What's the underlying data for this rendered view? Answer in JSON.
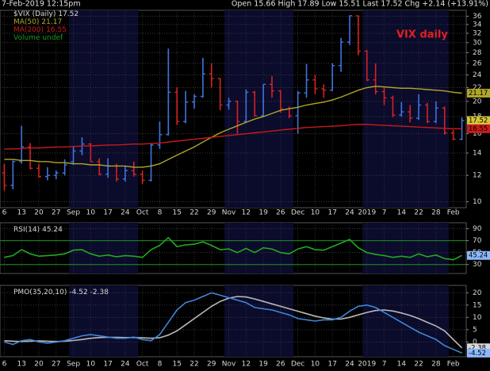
{
  "header": {
    "date": "7-Feb-2019 12:15pm",
    "quote": "Open 15.66  High 17.89  Low 15.51  Last 17.52  Chg +2.14 (+13.91%)"
  },
  "chart_data": [
    {
      "type": "ohlc",
      "annotation": "VIX daily",
      "categories": [
        "6",
        null,
        "13",
        null,
        "20",
        null,
        "27",
        null,
        "Sep",
        null,
        "10",
        null,
        "17",
        null,
        "24",
        null,
        "Oct",
        null,
        "8",
        null,
        "15",
        null,
        "22",
        null,
        "29",
        null,
        "Nov",
        null,
        "12",
        null,
        "19",
        null,
        "26",
        null,
        "Dec",
        null,
        "10",
        null,
        "17",
        null,
        "24",
        null,
        "2019",
        null,
        "7",
        null,
        "14",
        null,
        "22",
        null,
        "28",
        null,
        "Feb",
        null
      ],
      "ohlc": {
        "name": "$VIX (Daily)",
        "up_color": "#3f74e0",
        "down_color": "#d42323",
        "open": [
          12.2,
          11.2,
          13.2,
          14.6,
          12.6,
          11.9,
          12.0,
          12.2,
          13.2,
          14.2,
          14.9,
          13.2,
          12.1,
          12.8,
          11.7,
          12.4,
          12.1,
          11.6,
          14.8,
          15.9,
          21.3,
          17.4,
          19.9,
          20.7,
          24.2,
          23.4,
          19.5,
          20.0,
          17.4,
          21.3,
          18.1,
          22.5,
          21.5,
          19.0,
          18.1,
          21.2,
          23.2,
          21.8,
          21.6,
          25.6,
          30.1,
          36.1,
          28.3,
          23.2,
          21.4,
          20.5,
          18.2,
          18.6,
          17.8,
          19.5,
          17.4,
          19.1,
          16.1,
          15.4
        ],
        "high": [
          13.0,
          13.3,
          16.9,
          15.0,
          13.0,
          12.7,
          12.4,
          13.4,
          14.6,
          15.6,
          15.0,
          13.5,
          13.5,
          13.0,
          12.8,
          13.2,
          12.4,
          15.0,
          17.4,
          28.8,
          22.0,
          21.5,
          21.0,
          27.0,
          26.0,
          23.5,
          20.5,
          20.1,
          21.7,
          21.5,
          22.5,
          23.8,
          21.6,
          19.3,
          21.5,
          25.9,
          24.0,
          22.5,
          26.0,
          31.0,
          36.2,
          36.2,
          28.5,
          26.0,
          22.0,
          20.8,
          19.9,
          19.5,
          21.0,
          19.8,
          20.0,
          19.3,
          16.4,
          17.9
        ],
        "low": [
          10.8,
          10.9,
          13.0,
          12.5,
          11.8,
          11.6,
          11.7,
          12.0,
          12.9,
          13.8,
          13.2,
          12.0,
          11.8,
          11.5,
          11.5,
          11.9,
          11.3,
          11.5,
          14.4,
          15.8,
          17.0,
          17.2,
          19.0,
          20.5,
          22.0,
          18.8,
          18.9,
          16.0,
          17.3,
          18.0,
          18.0,
          20.5,
          18.5,
          17.8,
          16.0,
          20.5,
          21.0,
          20.5,
          21.5,
          24.5,
          29.5,
          27.5,
          23.0,
          21.0,
          19.5,
          17.9,
          18.0,
          17.3,
          17.6,
          17.2,
          17.2,
          15.9,
          15.3,
          15.3
        ],
        "close": [
          11.2,
          13.2,
          14.6,
          12.6,
          11.9,
          12.0,
          12.2,
          12.9,
          14.2,
          14.9,
          13.2,
          12.1,
          12.8,
          11.7,
          12.4,
          12.1,
          11.6,
          14.8,
          15.9,
          21.3,
          17.4,
          19.9,
          20.7,
          24.2,
          23.4,
          19.5,
          20.0,
          17.4,
          21.3,
          18.1,
          22.5,
          21.5,
          19.0,
          18.1,
          21.2,
          23.2,
          21.8,
          21.6,
          25.6,
          30.1,
          36.1,
          28.3,
          23.2,
          21.4,
          20.5,
          18.2,
          18.6,
          17.8,
          19.5,
          17.4,
          19.1,
          16.1,
          15.4,
          17.52
        ]
      },
      "series": [
        {
          "name": "MA(50)",
          "color": "#b0a628",
          "values": [
            13.4,
            13.4,
            13.3,
            13.3,
            13.2,
            13.2,
            13.1,
            13.1,
            13.0,
            13.0,
            12.9,
            12.9,
            12.8,
            12.8,
            12.8,
            12.7,
            12.7,
            12.8,
            13.0,
            13.4,
            13.8,
            14.2,
            14.6,
            15.1,
            15.6,
            16.1,
            16.5,
            16.9,
            17.3,
            17.7,
            18.0,
            18.4,
            18.8,
            19.0,
            19.2,
            19.5,
            19.7,
            19.9,
            20.2,
            20.6,
            21.1,
            21.6,
            22.0,
            22.2,
            22.1,
            22.0,
            21.9,
            21.9,
            21.8,
            21.7,
            21.6,
            21.5,
            21.3,
            21.17
          ]
        },
        {
          "name": "MA(200)",
          "color": "#c81a1a",
          "values": [
            14.4,
            14.4,
            14.45,
            14.5,
            14.5,
            14.55,
            14.6,
            14.6,
            14.65,
            14.7,
            14.7,
            14.75,
            14.8,
            14.8,
            14.85,
            14.9,
            14.9,
            14.95,
            15.0,
            15.1,
            15.2,
            15.3,
            15.4,
            15.5,
            15.6,
            15.7,
            15.8,
            15.9,
            16.0,
            16.1,
            16.2,
            16.3,
            16.4,
            16.5,
            16.6,
            16.7,
            16.75,
            16.8,
            16.85,
            16.9,
            17.0,
            17.05,
            17.05,
            17.0,
            16.95,
            16.9,
            16.85,
            16.8,
            16.75,
            16.7,
            16.65,
            16.6,
            16.55,
            16.55
          ]
        }
      ],
      "volume_legend": "Volume undef",
      "volume_color": "#1a9a1a",
      "ylim": [
        9.6,
        37.5
      ],
      "yticks": [
        10,
        12,
        14,
        16,
        18,
        20,
        22,
        24,
        26,
        28,
        30,
        32,
        34,
        36
      ],
      "log_scale": true,
      "grid": true
    },
    {
      "type": "line",
      "series": [
        {
          "name": "RSI(14)",
          "color": "#22a822",
          "values": [
            42,
            45,
            55,
            48,
            44,
            45,
            46,
            48,
            54,
            55,
            48,
            44,
            46,
            43,
            45,
            44,
            42,
            55,
            62,
            75,
            60,
            63,
            64,
            68,
            62,
            55,
            56,
            50,
            57,
            50,
            58,
            56,
            50,
            48,
            56,
            60,
            55,
            54,
            60,
            66,
            72,
            58,
            50,
            47,
            45,
            42,
            44,
            42,
            48,
            43,
            46,
            40,
            38,
            45.24
          ]
        }
      ],
      "reference_lines": [
        30,
        70
      ],
      "reference_color": "#1f8f1f",
      "ylim": [
        15,
        100
      ],
      "yticks": [
        30,
        50,
        70,
        90
      ],
      "log_scale": false,
      "grid": true
    },
    {
      "type": "line",
      "series": [
        {
          "name": "PMO(35,20,10)",
          "color": "#3f86d8",
          "values": [
            0,
            -1,
            0.5,
            1,
            0,
            -0.5,
            0,
            0.5,
            1.5,
            2.5,
            3,
            2.5,
            2,
            1.5,
            1.5,
            2,
            1,
            0.5,
            3,
            8,
            13,
            16,
            17,
            18.5,
            20,
            19,
            18,
            17,
            16,
            14,
            13.5,
            13,
            12,
            11,
            9.5,
            9,
            8.5,
            9,
            9,
            10,
            12.5,
            14.5,
            15,
            14,
            12,
            10,
            8,
            6,
            4,
            2.5,
            1,
            -1.5,
            -3,
            -4.52
          ]
        },
        {
          "name": null,
          "color": "#b8b8b8",
          "values": [
            0.5,
            0.3,
            0.2,
            0.3,
            0.4,
            0.3,
            0.2,
            0.3,
            0.6,
            1.0,
            1.5,
            1.8,
            1.9,
            1.9,
            1.8,
            1.8,
            1.7,
            1.5,
            1.7,
            2.8,
            4.5,
            7,
            9.5,
            12,
            14.5,
            16.5,
            17.8,
            18.5,
            18.3,
            17.5,
            16.5,
            15.5,
            14.5,
            13.5,
            12.5,
            11.5,
            10.5,
            9.8,
            9.3,
            9.3,
            10,
            11,
            12,
            12.8,
            13,
            12.6,
            11.8,
            10.8,
            9.5,
            8,
            6.5,
            4.5,
            1,
            -2.38
          ]
        }
      ],
      "ylim": [
        -6,
        23
      ],
      "yticks": [
        0,
        5,
        10,
        15,
        20
      ],
      "log_scale": false,
      "grid": true
    }
  ]
}
